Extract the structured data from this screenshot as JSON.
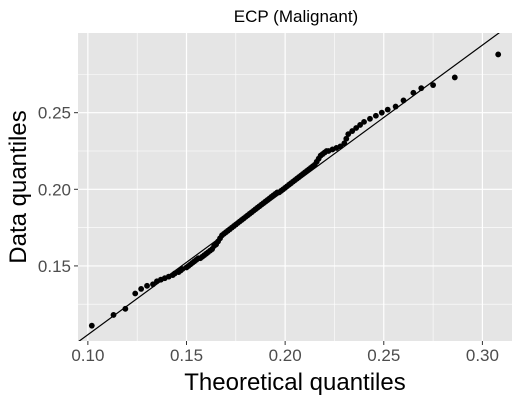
{
  "chart_data": {
    "type": "scatter",
    "title": "ECP (Malignant)",
    "xlabel": "Theoretical quantiles",
    "ylabel": "Data quantiles",
    "xlim": [
      0.095,
      0.315
    ],
    "ylim": [
      0.101,
      0.302
    ],
    "x_ticks": [
      0.1,
      0.15,
      0.2,
      0.25,
      0.3
    ],
    "x_tick_labels": [
      "0.10",
      "0.15",
      "0.20",
      "0.25",
      "0.30"
    ],
    "y_ticks": [
      0.15,
      0.2,
      0.25
    ],
    "y_tick_labels": [
      "0.15",
      "0.20",
      "0.25"
    ],
    "grid": true,
    "reference_line": {
      "slope": 0.945,
      "intercept": 0.0106
    },
    "point_color": "#000000",
    "line_color": "#000000",
    "panel_color": "#e5e5e5",
    "grid_color": "#ffffff",
    "x": [
      0.102,
      0.113,
      0.119,
      0.124,
      0.127,
      0.13,
      0.133,
      0.135,
      0.137,
      0.139,
      0.141,
      0.143,
      0.144,
      0.146,
      0.147,
      0.148,
      0.15,
      0.151,
      0.152,
      0.153,
      0.154,
      0.155,
      0.156,
      0.157,
      0.158,
      0.159,
      0.16,
      0.161,
      0.162,
      0.163,
      0.164,
      0.165,
      0.166,
      0.167,
      0.168,
      0.169,
      0.17,
      0.171,
      0.172,
      0.173,
      0.174,
      0.175,
      0.176,
      0.177,
      0.178,
      0.179,
      0.18,
      0.181,
      0.182,
      0.183,
      0.184,
      0.185,
      0.186,
      0.187,
      0.188,
      0.189,
      0.19,
      0.191,
      0.192,
      0.193,
      0.194,
      0.195,
      0.196,
      0.197,
      0.198,
      0.199,
      0.2,
      0.201,
      0.202,
      0.203,
      0.204,
      0.205,
      0.206,
      0.207,
      0.208,
      0.209,
      0.21,
      0.211,
      0.212,
      0.213,
      0.214,
      0.215,
      0.216,
      0.217,
      0.218,
      0.219,
      0.22,
      0.221,
      0.222,
      0.224,
      0.226,
      0.228,
      0.23,
      0.231,
      0.232,
      0.234,
      0.236,
      0.238,
      0.24,
      0.243,
      0.246,
      0.249,
      0.252,
      0.256,
      0.26,
      0.265,
      0.269,
      0.275,
      0.286,
      0.308
    ],
    "y": [
      0.111,
      0.118,
      0.122,
      0.132,
      0.135,
      0.137,
      0.138,
      0.14,
      0.141,
      0.142,
      0.143,
      0.144,
      0.145,
      0.146,
      0.147,
      0.148,
      0.149,
      0.15,
      0.151,
      0.152,
      0.153,
      0.154,
      0.155,
      0.155,
      0.156,
      0.157,
      0.158,
      0.159,
      0.16,
      0.161,
      0.163,
      0.164,
      0.166,
      0.168,
      0.17,
      0.171,
      0.172,
      0.173,
      0.174,
      0.175,
      0.176,
      0.177,
      0.178,
      0.179,
      0.18,
      0.181,
      0.182,
      0.183,
      0.184,
      0.185,
      0.186,
      0.187,
      0.188,
      0.189,
      0.19,
      0.191,
      0.192,
      0.193,
      0.194,
      0.195,
      0.196,
      0.197,
      0.198,
      0.198,
      0.199,
      0.2,
      0.201,
      0.202,
      0.203,
      0.204,
      0.205,
      0.206,
      0.207,
      0.208,
      0.209,
      0.21,
      0.211,
      0.212,
      0.213,
      0.214,
      0.215,
      0.216,
      0.218,
      0.22,
      0.222,
      0.223,
      0.224,
      0.225,
      0.225,
      0.226,
      0.227,
      0.228,
      0.23,
      0.233,
      0.236,
      0.238,
      0.24,
      0.242,
      0.244,
      0.246,
      0.248,
      0.25,
      0.252,
      0.254,
      0.258,
      0.263,
      0.266,
      0.268,
      0.273,
      0.288
    ]
  }
}
